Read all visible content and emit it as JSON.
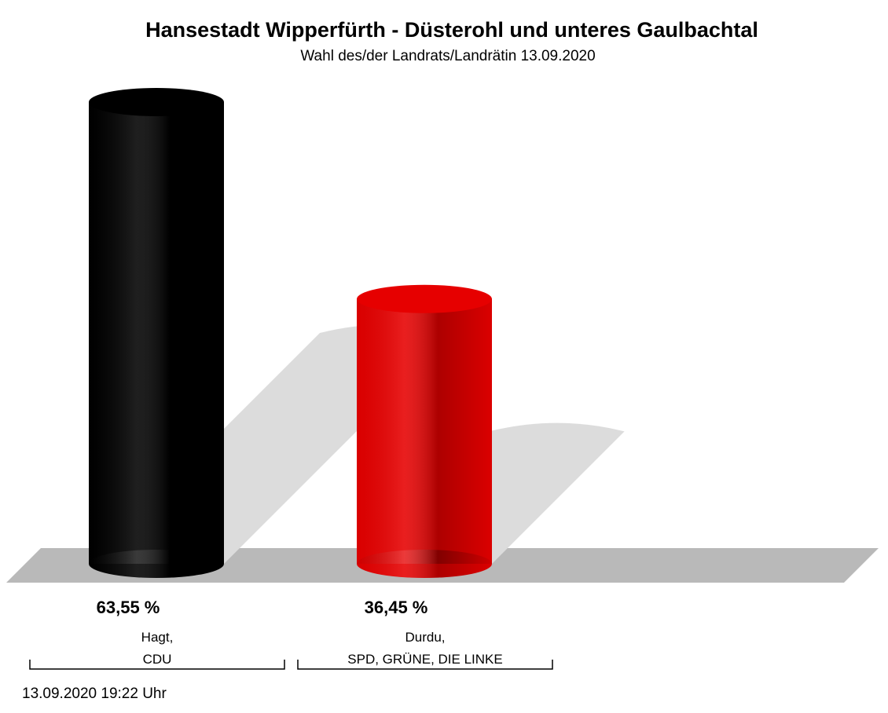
{
  "chart_data": {
    "type": "bar",
    "title": "Hansestadt Wipperfürth - Düsterohl und unteres Gaulbachtal",
    "subtitle": "Wahl des/der Landrats/Landrätin 13.09.2020",
    "categories": [
      "Hagt,\nCDU",
      "Durdu,\nSPD, GRÜNE, DIE LINKE"
    ],
    "values": [
      63.55,
      36.45
    ],
    "value_labels": [
      "63,55 %",
      "36,45 %"
    ],
    "colors": [
      "#000000",
      "#e60000"
    ],
    "timestamp": "13.09.2020 19:22 Uhr"
  }
}
